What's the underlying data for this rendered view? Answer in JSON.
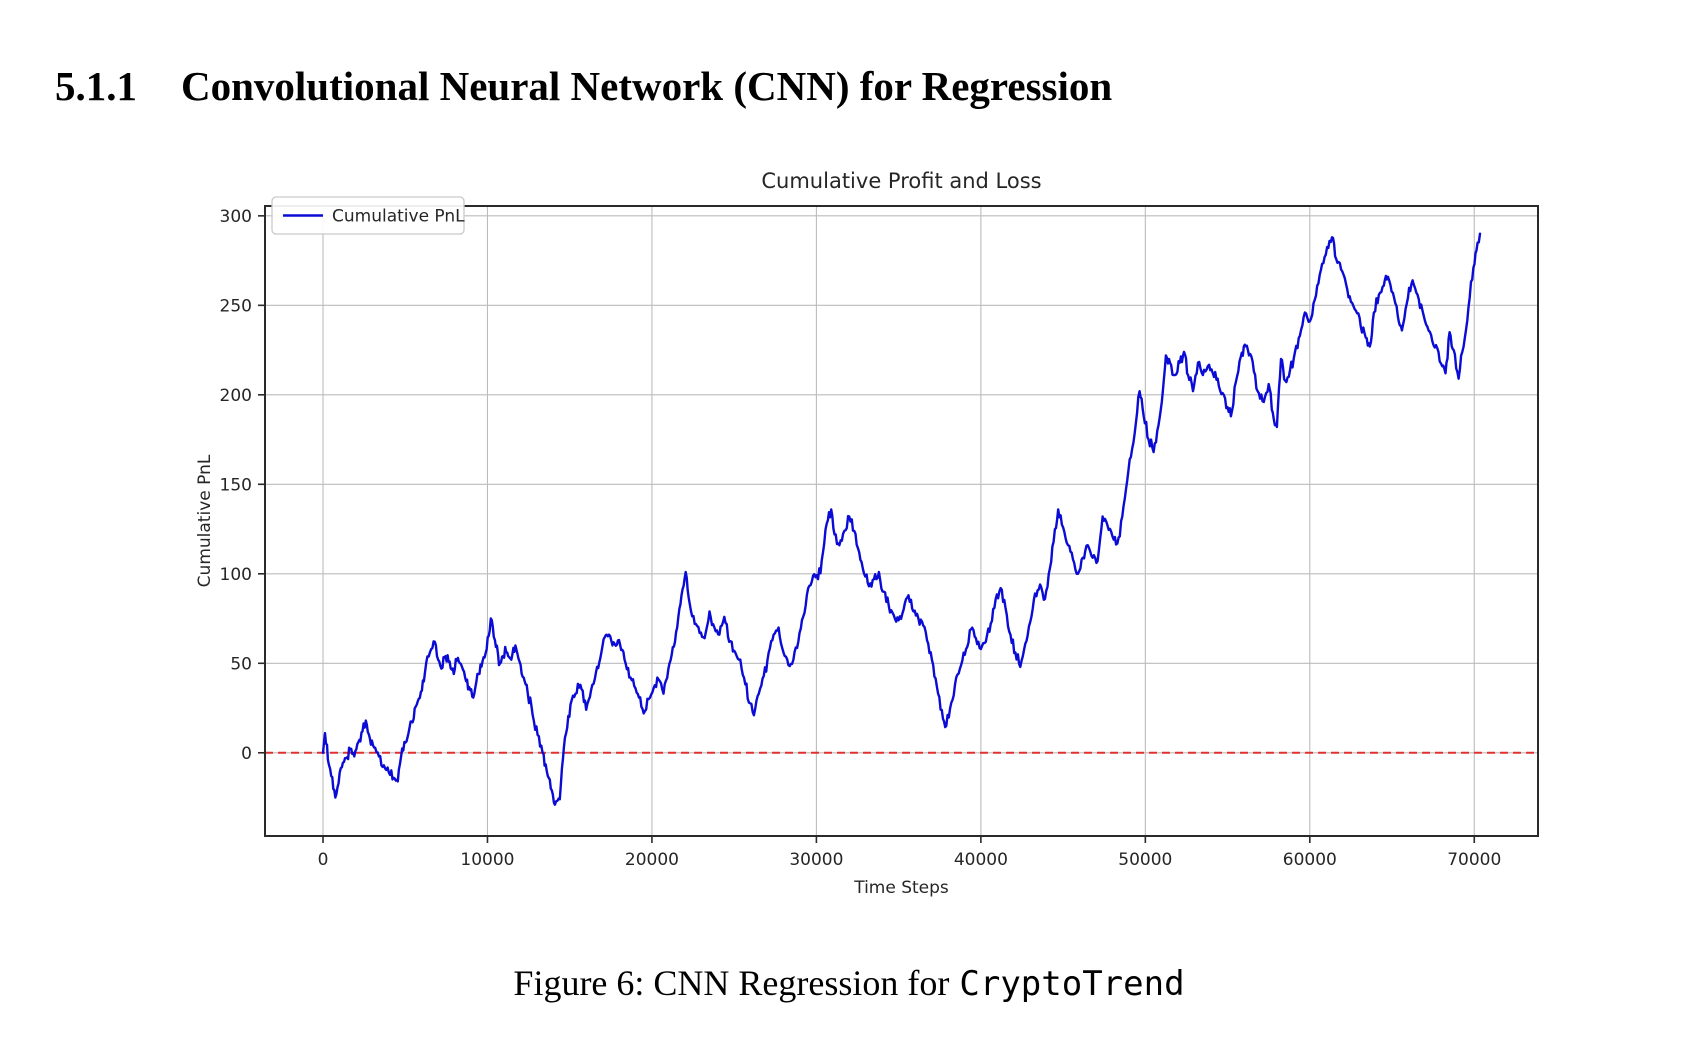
{
  "page": {
    "background": "#ffffff"
  },
  "heading": {
    "number": "5.1.1",
    "title": "Convolutional Neural Network (CNN) for Regression"
  },
  "caption": {
    "prefix": "Figure 6: CNN Regression for",
    "code": "CryptoTrend"
  },
  "chart_data": {
    "type": "line",
    "title": "Cumulative Profit and Loss",
    "xlabel": "Time Steps",
    "ylabel": "Cumulative PnL",
    "grid": true,
    "legend_position": "upper left",
    "legend": [
      {
        "label": "Cumulative PnL",
        "color": "#0b0bd6"
      }
    ],
    "xlim": [
      -3527,
      73875
    ],
    "ylim": [
      -46.5,
      305.5
    ],
    "xticks": [
      0,
      10000,
      20000,
      30000,
      40000,
      50000,
      60000,
      70000
    ],
    "yticks": [
      0,
      50,
      100,
      150,
      200,
      250,
      300
    ],
    "zero_line": {
      "y": 0,
      "color": "#e03030",
      "style": "dashed"
    },
    "colors": {
      "line": "#0b0bd6",
      "zero": "#e03030",
      "grid": "#bcbcbc",
      "spine": "#2a2a2a",
      "text": "#262626"
    },
    "series": [
      {
        "name": "Cumulative PnL",
        "color": "#0b0bd6",
        "points": [
          [
            0,
            0
          ],
          [
            120,
            11
          ],
          [
            300,
            -4
          ],
          [
            500,
            -13
          ],
          [
            750,
            -25
          ],
          [
            950,
            -17
          ],
          [
            1150,
            -8
          ],
          [
            1400,
            -3
          ],
          [
            1650,
            2
          ],
          [
            1900,
            -2
          ],
          [
            2150,
            6
          ],
          [
            2400,
            12
          ],
          [
            2600,
            18
          ],
          [
            2850,
            8
          ],
          [
            3100,
            3
          ],
          [
            3400,
            -2
          ],
          [
            3700,
            -7
          ],
          [
            4000,
            -11
          ],
          [
            4300,
            -14
          ],
          [
            4550,
            -16
          ],
          [
            4750,
            -2
          ],
          [
            4950,
            6
          ],
          [
            5200,
            11
          ],
          [
            5450,
            17
          ],
          [
            5700,
            27
          ],
          [
            5950,
            34
          ],
          [
            6200,
            45
          ],
          [
            6500,
            56
          ],
          [
            6800,
            62
          ],
          [
            7000,
            52
          ],
          [
            7200,
            47
          ],
          [
            7450,
            54
          ],
          [
            7700,
            51
          ],
          [
            7950,
            44
          ],
          [
            8200,
            53
          ],
          [
            8450,
            48
          ],
          [
            8700,
            40
          ],
          [
            8950,
            35
          ],
          [
            9200,
            33
          ],
          [
            9450,
            44
          ],
          [
            9700,
            51
          ],
          [
            9950,
            58
          ],
          [
            10200,
            75
          ],
          [
            10450,
            63
          ],
          [
            10700,
            49
          ],
          [
            10950,
            54
          ],
          [
            11200,
            56
          ],
          [
            11450,
            52
          ],
          [
            11700,
            60
          ],
          [
            11950,
            51
          ],
          [
            12200,
            42
          ],
          [
            12450,
            33
          ],
          [
            12750,
            21
          ],
          [
            13050,
            10
          ],
          [
            13350,
            0
          ],
          [
            13600,
            -10
          ],
          [
            13850,
            -20
          ],
          [
            14100,
            -29
          ],
          [
            14400,
            -26
          ],
          [
            14650,
            3
          ],
          [
            14850,
            14
          ],
          [
            15050,
            27
          ],
          [
            15350,
            33
          ],
          [
            15650,
            38
          ],
          [
            16000,
            24
          ],
          [
            16300,
            35
          ],
          [
            16600,
            45
          ],
          [
            17000,
            60
          ],
          [
            17250,
            66
          ],
          [
            17600,
            60
          ],
          [
            18000,
            63
          ],
          [
            18400,
            50
          ],
          [
            18700,
            42
          ],
          [
            19000,
            36
          ],
          [
            19500,
            22
          ],
          [
            19800,
            30
          ],
          [
            20100,
            36
          ],
          [
            20400,
            41
          ],
          [
            20700,
            33
          ],
          [
            21000,
            47
          ],
          [
            21400,
            62
          ],
          [
            21800,
            88
          ],
          [
            22050,
            101
          ],
          [
            22300,
            83
          ],
          [
            22600,
            72
          ],
          [
            22900,
            67
          ],
          [
            23200,
            64
          ],
          [
            23500,
            79
          ],
          [
            23800,
            70
          ],
          [
            24100,
            66
          ],
          [
            24400,
            76
          ],
          [
            24700,
            62
          ],
          [
            25000,
            57
          ],
          [
            25300,
            52
          ],
          [
            25600,
            42
          ],
          [
            25900,
            28
          ],
          [
            26200,
            21
          ],
          [
            26500,
            33
          ],
          [
            26800,
            43
          ],
          [
            27100,
            56
          ],
          [
            27400,
            66
          ],
          [
            27700,
            70
          ],
          [
            28000,
            56
          ],
          [
            28300,
            49
          ],
          [
            28600,
            52
          ],
          [
            28900,
            62
          ],
          [
            29200,
            76
          ],
          [
            29500,
            92
          ],
          [
            29800,
            99
          ],
          [
            30100,
            97
          ],
          [
            30400,
            112
          ],
          [
            30700,
            130
          ],
          [
            30900,
            136
          ],
          [
            31100,
            122
          ],
          [
            31400,
            116
          ],
          [
            31700,
            124
          ],
          [
            32000,
            132
          ],
          [
            32300,
            124
          ],
          [
            32600,
            112
          ],
          [
            32900,
            100
          ],
          [
            33200,
            93
          ],
          [
            33500,
            97
          ],
          [
            33800,
            101
          ],
          [
            34100,
            90
          ],
          [
            34400,
            82
          ],
          [
            34700,
            77
          ],
          [
            35000,
            74
          ],
          [
            35300,
            80
          ],
          [
            35600,
            88
          ],
          [
            35900,
            79
          ],
          [
            36200,
            75
          ],
          [
            36500,
            71
          ],
          [
            36800,
            61
          ],
          [
            37100,
            49
          ],
          [
            37400,
            33
          ],
          [
            37700,
            19
          ],
          [
            37900,
            15
          ],
          [
            38200,
            28
          ],
          [
            38500,
            42
          ],
          [
            38800,
            49
          ],
          [
            39100,
            58
          ],
          [
            39400,
            69
          ],
          [
            39700,
            64
          ],
          [
            40000,
            58
          ],
          [
            40300,
            62
          ],
          [
            40600,
            72
          ],
          [
            40900,
            86
          ],
          [
            41200,
            92
          ],
          [
            41500,
            81
          ],
          [
            41800,
            66
          ],
          [
            42100,
            56
          ],
          [
            42400,
            48
          ],
          [
            42700,
            61
          ],
          [
            43000,
            73
          ],
          [
            43300,
            89
          ],
          [
            43600,
            94
          ],
          [
            43900,
            86
          ],
          [
            44200,
            103
          ],
          [
            44500,
            125
          ],
          [
            44700,
            136
          ],
          [
            45000,
            126
          ],
          [
            45300,
            116
          ],
          [
            45600,
            108
          ],
          [
            45900,
            100
          ],
          [
            46200,
            109
          ],
          [
            46500,
            116
          ],
          [
            46800,
            109
          ],
          [
            47100,
            107
          ],
          [
            47400,
            132
          ],
          [
            47700,
            127
          ],
          [
            48000,
            121
          ],
          [
            48300,
            117
          ],
          [
            48600,
            132
          ],
          [
            48900,
            152
          ],
          [
            49200,
            170
          ],
          [
            49500,
            190
          ],
          [
            49650,
            202
          ],
          [
            49900,
            188
          ],
          [
            50200,
            175
          ],
          [
            50500,
            168
          ],
          [
            50800,
            183
          ],
          [
            51000,
            196
          ],
          [
            51250,
            222
          ],
          [
            51500,
            218
          ],
          [
            51800,
            211
          ],
          [
            52100,
            218
          ],
          [
            52350,
            224
          ],
          [
            52600,
            211
          ],
          [
            52900,
            202
          ],
          [
            53200,
            218
          ],
          [
            53500,
            211
          ],
          [
            53800,
            216
          ],
          [
            54100,
            212
          ],
          [
            54400,
            209
          ],
          [
            54700,
            201
          ],
          [
            55000,
            193
          ],
          [
            55200,
            188
          ],
          [
            55500,
            207
          ],
          [
            55800,
            221
          ],
          [
            56050,
            228
          ],
          [
            56300,
            222
          ],
          [
            56600,
            213
          ],
          [
            56900,
            201
          ],
          [
            57200,
            196
          ],
          [
            57500,
            206
          ],
          [
            57750,
            190
          ],
          [
            58000,
            182
          ],
          [
            58250,
            220
          ],
          [
            58500,
            208
          ],
          [
            58800,
            214
          ],
          [
            59100,
            224
          ],
          [
            59400,
            233
          ],
          [
            59700,
            246
          ],
          [
            60000,
            241
          ],
          [
            60300,
            253
          ],
          [
            60600,
            267
          ],
          [
            60900,
            277
          ],
          [
            61200,
            286
          ],
          [
            61350,
            288
          ],
          [
            61600,
            276
          ],
          [
            61900,
            270
          ],
          [
            62200,
            262
          ],
          [
            62500,
            252
          ],
          [
            62800,
            247
          ],
          [
            63100,
            238
          ],
          [
            63400,
            232
          ],
          [
            63650,
            227
          ],
          [
            63900,
            246
          ],
          [
            64200,
            256
          ],
          [
            64500,
            261
          ],
          [
            64750,
            266
          ],
          [
            65050,
            257
          ],
          [
            65350,
            244
          ],
          [
            65600,
            236
          ],
          [
            65900,
            251
          ],
          [
            66250,
            264
          ],
          [
            66550,
            256
          ],
          [
            66850,
            247
          ],
          [
            67150,
            238
          ],
          [
            67450,
            230
          ],
          [
            67750,
            226
          ],
          [
            68050,
            216
          ],
          [
            68250,
            212
          ],
          [
            68500,
            235
          ],
          [
            68750,
            225
          ],
          [
            69050,
            209
          ],
          [
            69350,
            227
          ],
          [
            69650,
            249
          ],
          [
            69950,
            271
          ],
          [
            70200,
            285
          ],
          [
            70350,
            290
          ]
        ]
      }
    ]
  }
}
